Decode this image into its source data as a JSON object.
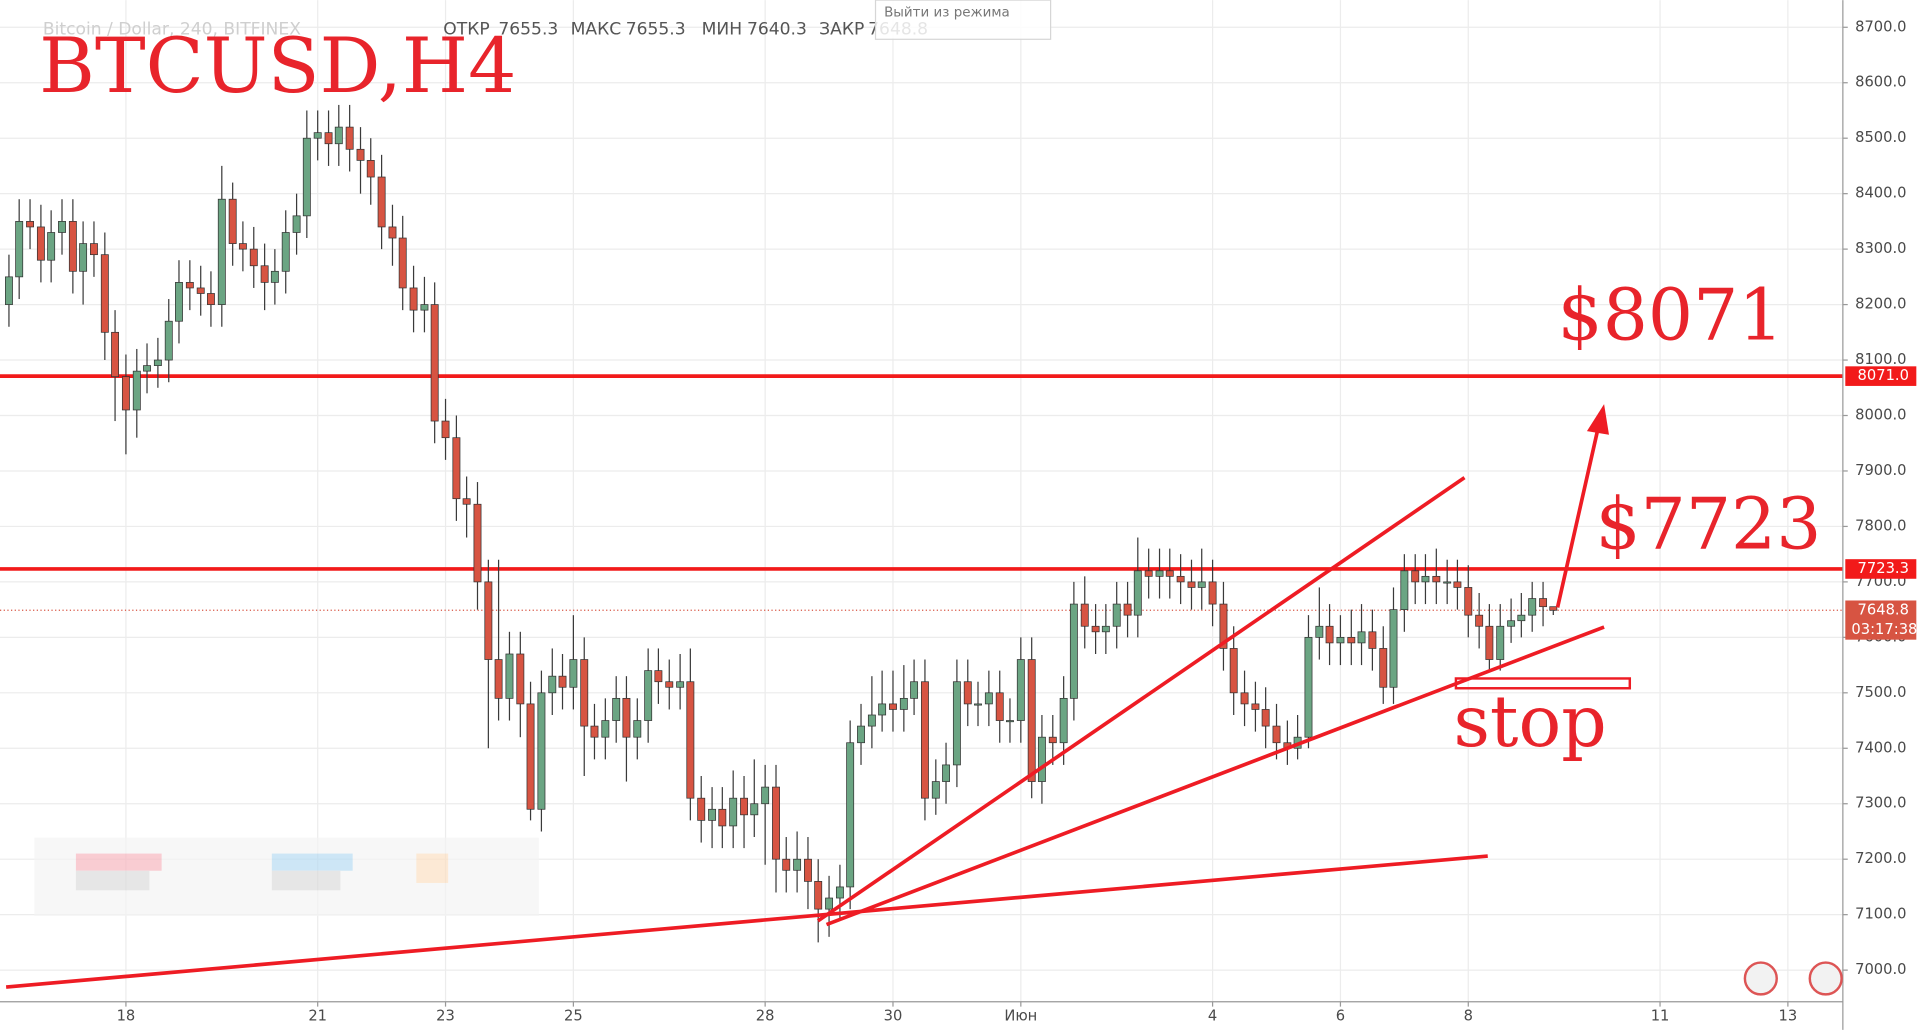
{
  "chart_data": {
    "type": "candlestick",
    "title": "BTCUSD,H4",
    "symbol": "Bitcoin / Dollar, 240, BITFINEX",
    "ohlc_labels": [
      "ОТКР",
      "МАКС",
      "МИН",
      "ЗАКР"
    ],
    "tooltip": "Выйти из режима",
    "countdown": "03:17:38",
    "annotations": [
      "$8071",
      "$7723",
      "stop"
    ],
    "up_color": "#6ba583",
    "down_color": "#d75442",
    "level_color": "#f21a1a",
    "grid": true,
    "xlim": [
      16.03,
      44.86
    ],
    "ylim": [
      6943,
      8749
    ],
    "xticks": [
      18,
      21,
      23,
      25,
      28,
      30,
      {
        "value": 32,
        "label": "Июн"
      },
      {
        "value": 35,
        "label": "4"
      },
      {
        "value": 37,
        "label": "6"
      },
      {
        "value": 39,
        "label": "8"
      },
      {
        "value": 42,
        "label": "11"
      },
      {
        "value": 44,
        "label": "13"
      }
    ],
    "yticks": [
      {
        "value": 7000,
        "label": "7000.0"
      },
      {
        "value": 7100,
        "label": "7100.0"
      },
      {
        "value": 7200,
        "label": "7200.0"
      },
      {
        "value": 7300,
        "label": "7300.0"
      },
      {
        "value": 7400,
        "label": "7400.0"
      },
      {
        "value": 7500,
        "label": "7500.0"
      },
      {
        "value": 7600,
        "label": "7600.0"
      },
      {
        "value": 7700,
        "label": "7700.0"
      },
      {
        "value": 7800,
        "label": "7800.0"
      },
      {
        "value": 7900,
        "label": "7900.0"
      },
      {
        "value": 8000,
        "label": "8000.0"
      },
      {
        "value": 8100,
        "label": "8100.0"
      },
      {
        "value": 8200,
        "label": "8200.0"
      },
      {
        "value": 8300,
        "label": "8300.0"
      },
      {
        "value": 8400,
        "label": "8400.0"
      },
      {
        "value": 8500,
        "label": "8500.0"
      },
      {
        "value": 8600,
        "label": "8600.0"
      },
      {
        "value": 8700,
        "label": "8700.0"
      }
    ],
    "levels": [
      {
        "value": 8071,
        "label": "8071.0"
      },
      7723.3
    ],
    "x": [
      16.17,
      16.33,
      16.5,
      16.67,
      16.83,
      17,
      17.17,
      17.33,
      17.5,
      17.67,
      17.83,
      18,
      18.17,
      18.33,
      18.5,
      18.67,
      18.83,
      19,
      19.17,
      19.33,
      19.5,
      19.67,
      19.83,
      20,
      20.17,
      20.33,
      20.5,
      20.67,
      20.83,
      21,
      21.17,
      21.33,
      21.5,
      21.67,
      21.83,
      22,
      22.17,
      22.33,
      22.5,
      22.67,
      22.83,
      23,
      23.17,
      23.33,
      23.5,
      23.67,
      23.83,
      24,
      24.17,
      24.33,
      24.5,
      24.67,
      24.83,
      25,
      25.17,
      25.33,
      25.5,
      25.67,
      25.83,
      26,
      26.17,
      26.33,
      26.5,
      26.67,
      26.83,
      27,
      27.17,
      27.33,
      27.5,
      27.67,
      27.83,
      28,
      28.17,
      28.33,
      28.5,
      28.67,
      28.83,
      29,
      29.17,
      29.33,
      29.5,
      29.67,
      29.83,
      30,
      30.17,
      30.33,
      30.5,
      30.67,
      30.83,
      31,
      31.17,
      31.33,
      31.5,
      31.67,
      31.83,
      32,
      32.17,
      32.33,
      32.5,
      32.67,
      32.83,
      33,
      33.17,
      33.33,
      33.5,
      33.67,
      33.83,
      34,
      34.17,
      34.33,
      34.5,
      34.67,
      34.83,
      35,
      35.17,
      35.33,
      35.5,
      35.67,
      35.83,
      36,
      36.17,
      36.33,
      36.5,
      36.67,
      36.83,
      37,
      37.17,
      37.33,
      37.5,
      37.67,
      37.83,
      38,
      38.17,
      38.33,
      38.5,
      38.67,
      38.83,
      39,
      39.17,
      39.33,
      39.5,
      39.67,
      39.83,
      40,
      40.17,
      40.33
    ],
    "open": [
      8200,
      8250,
      8350,
      8340,
      8280,
      8330,
      8350,
      8260,
      8310,
      8290,
      8150,
      8070,
      8010,
      8080,
      8090,
      8100,
      8170,
      8240,
      8230,
      8220,
      8200,
      8390,
      8310,
      8300,
      8270,
      8240,
      8260,
      8330,
      8360,
      8500,
      8510,
      8490,
      8520,
      8480,
      8460,
      8430,
      8340,
      8320,
      8230,
      8190,
      8200,
      7990,
      7960,
      7850,
      7840,
      7700,
      7560,
      7490,
      7570,
      7480,
      7290,
      7500,
      7530,
      7510,
      7560,
      7440,
      7420,
      7450,
      7490,
      7420,
      7450,
      7540,
      7520,
      7510,
      7520,
      7310,
      7270,
      7290,
      7260,
      7310,
      7280,
      7300,
      7330,
      7200,
      7180,
      7200,
      7160,
      7110,
      7130,
      7150,
      7410,
      7440,
      7460,
      7480,
      7470,
      7490,
      7520,
      7310,
      7340,
      7370,
      7520,
      7480,
      7480,
      7500,
      7450,
      7450,
      7560,
      7340,
      7420,
      7410,
      7490,
      7660,
      7620,
      7610,
      7620,
      7660,
      7640,
      7720,
      7710,
      7720,
      7710,
      7700,
      7690,
      7700,
      7660,
      7580,
      7500,
      7480,
      7470,
      7440,
      7410,
      7400,
      7420,
      7600,
      7620,
      7590,
      7600,
      7590,
      7610,
      7580,
      7510,
      7650,
      7720,
      7700,
      7710,
      7700,
      7700,
      7690,
      7640,
      7620,
      7560,
      7620,
      7630,
      7640,
      7670,
      7655.3
    ],
    "high": [
      8290,
      8390,
      8390,
      8380,
      8370,
      8390,
      8390,
      8350,
      8350,
      8330,
      8190,
      8110,
      8120,
      8130,
      8140,
      8210,
      8280,
      8280,
      8270,
      8260,
      8450,
      8420,
      8350,
      8340,
      8310,
      8300,
      8370,
      8400,
      8550,
      8550,
      8550,
      8560,
      8560,
      8520,
      8500,
      8470,
      8380,
      8360,
      8270,
      8250,
      8240,
      8030,
      8000,
      7890,
      7880,
      7740,
      7740,
      7610,
      7610,
      7520,
      7540,
      7580,
      7570,
      7640,
      7600,
      7480,
      7490,
      7530,
      7530,
      7490,
      7580,
      7580,
      7560,
      7570,
      7580,
      7350,
      7330,
      7330,
      7360,
      7350,
      7380,
      7370,
      7370,
      7240,
      7250,
      7240,
      7200,
      7170,
      7190,
      7450,
      7480,
      7530,
      7540,
      7540,
      7550,
      7560,
      7560,
      7380,
      7410,
      7560,
      7560,
      7520,
      7540,
      7540,
      7490,
      7600,
      7600,
      7460,
      7460,
      7530,
      7700,
      7710,
      7660,
      7660,
      7700,
      7700,
      7780,
      7760,
      7760,
      7760,
      7750,
      7740,
      7760,
      7740,
      7700,
      7620,
      7540,
      7520,
      7510,
      7480,
      7450,
      7460,
      7640,
      7690,
      7660,
      7640,
      7650,
      7660,
      7650,
      7620,
      7690,
      7750,
      7750,
      7750,
      7760,
      7740,
      7740,
      7730,
      7680,
      7660,
      7660,
      7670,
      7680,
      7700,
      7700,
      7655.3
    ],
    "low": [
      8160,
      8210,
      8300,
      8240,
      8240,
      8290,
      8220,
      8200,
      8250,
      8100,
      7990,
      7930,
      7960,
      8040,
      8050,
      8060,
      8130,
      8190,
      8180,
      8160,
      8160,
      8270,
      8260,
      8230,
      8190,
      8200,
      8220,
      8290,
      8320,
      8460,
      8450,
      8450,
      8440,
      8400,
      8380,
      8300,
      8270,
      8190,
      8150,
      8150,
      7950,
      7920,
      7810,
      7780,
      7650,
      7400,
      7450,
      7450,
      7420,
      7270,
      7250,
      7460,
      7470,
      7470,
      7350,
      7380,
      7380,
      7410,
      7340,
      7380,
      7410,
      7480,
      7470,
      7470,
      7270,
      7230,
      7220,
      7220,
      7220,
      7220,
      7240,
      7190,
      7140,
      7140,
      7140,
      7110,
      7050,
      7060,
      7090,
      7110,
      7370,
      7400,
      7430,
      7430,
      7430,
      7460,
      7270,
      7280,
      7300,
      7330,
      7440,
      7440,
      7440,
      7410,
      7410,
      7410,
      7310,
      7300,
      7370,
      7370,
      7450,
      7580,
      7570,
      7570,
      7580,
      7600,
      7600,
      7670,
      7670,
      7670,
      7660,
      7650,
      7650,
      7620,
      7540,
      7460,
      7440,
      7430,
      7400,
      7380,
      7370,
      7380,
      7400,
      7560,
      7550,
      7550,
      7550,
      7550,
      7540,
      7480,
      7480,
      7610,
      7660,
      7660,
      7660,
      7660,
      7650,
      7600,
      7580,
      7540,
      7540,
      7590,
      7600,
      7610,
      7620,
      7640.3
    ],
    "close": [
      8250,
      8350,
      8340,
      8280,
      8330,
      8350,
      8260,
      8310,
      8290,
      8150,
      8070,
      8010,
      8080,
      8090,
      8100,
      8170,
      8240,
      8230,
      8220,
      8200,
      8390,
      8310,
      8300,
      8270,
      8240,
      8260,
      8330,
      8360,
      8500,
      8510,
      8490,
      8520,
      8480,
      8460,
      8430,
      8340,
      8320,
      8230,
      8190,
      8200,
      7990,
      7960,
      7850,
      7840,
      7700,
      7560,
      7490,
      7570,
      7480,
      7290,
      7500,
      7530,
      7510,
      7560,
      7440,
      7420,
      7450,
      7490,
      7420,
      7450,
      7540,
      7520,
      7510,
      7520,
      7310,
      7270,
      7290,
      7260,
      7310,
      7280,
      7300,
      7330,
      7200,
      7180,
      7200,
      7160,
      7110,
      7130,
      7150,
      7410,
      7440,
      7460,
      7480,
      7470,
      7490,
      7520,
      7310,
      7340,
      7370,
      7520,
      7480,
      7480,
      7500,
      7450,
      7450,
      7560,
      7340,
      7420,
      7410,
      7490,
      7660,
      7620,
      7610,
      7620,
      7660,
      7640,
      7720,
      7710,
      7720,
      7710,
      7700,
      7690,
      7700,
      7660,
      7580,
      7500,
      7480,
      7470,
      7440,
      7410,
      7400,
      7420,
      7600,
      7620,
      7590,
      7600,
      7590,
      7610,
      7580,
      7510,
      7650,
      7720,
      7700,
      7710,
      7700,
      7700,
      7690,
      7640,
      7620,
      7560,
      7620,
      7630,
      7640,
      7670,
      7655.3,
      7648.8
    ]
  }
}
